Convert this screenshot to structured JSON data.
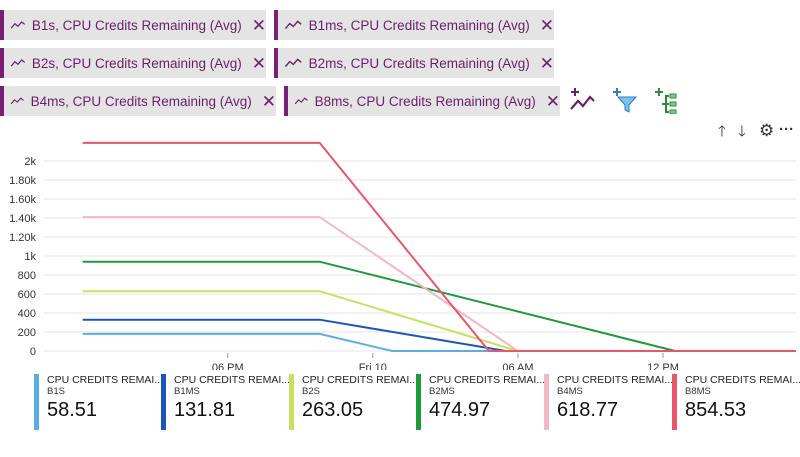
{
  "pills": [
    {
      "label": "B1s, CPU Credits Remaining (Avg)",
      "close": "✕"
    },
    {
      "label": "B1ms, CPU Credits Remaining (Avg)",
      "close": "✕"
    },
    {
      "label": "B2s, CPU Credits Remaining (Avg)",
      "close": "✕"
    },
    {
      "label": "B2ms, CPU Credits Remaining (Avg)",
      "close": "✕"
    },
    {
      "label": "B4ms, CPU Credits Remaining (Avg)",
      "close": "✕"
    },
    {
      "label": "B8ms, CPU Credits Remaining (Avg)",
      "close": "✕"
    }
  ],
  "toolbar": {
    "icons": [
      "add-metric-icon",
      "add-filter-icon",
      "apply-splitting-icon"
    ],
    "chart_actions": {
      "up": "🡑",
      "down": "🡓",
      "settings": "⚙",
      "more": "···"
    }
  },
  "colors": {
    "pill_accent": "#7a1e78",
    "B1s": "#5aaee0",
    "B1ms": "#1a56b8",
    "B2s": "#c8e060",
    "B2ms": "#1c9a3c",
    "B4ms": "#f4b8c2",
    "B8ms": "#e8566a"
  },
  "chart_data": {
    "type": "line",
    "x_ticks": [
      "06 PM",
      "Fri 10",
      "06 AM",
      "12 PM"
    ],
    "y_ticks": [
      "2k",
      "1.80k",
      "1.60k",
      "1.40k",
      "1.20k",
      "1k",
      "800",
      "600",
      "400",
      "200",
      "0"
    ],
    "ylim": [
      0,
      2200
    ],
    "x_unit": "hours since 12 PM Thursday",
    "xlim": [
      -1.6,
      29.5
    ],
    "grid": "horizontal",
    "series": [
      {
        "name": "B1s",
        "legend_label": "CPU CREDITS REMAI...",
        "sub": "B1S",
        "value": "58.51",
        "points": [
          [
            0,
            180
          ],
          [
            9.8,
            180
          ],
          [
            12.8,
            0
          ],
          [
            29.5,
            0
          ]
        ]
      },
      {
        "name": "B1ms",
        "legend_label": "CPU CREDITS REMAI...",
        "sub": "B1MS",
        "value": "131.81",
        "points": [
          [
            0,
            330
          ],
          [
            9.8,
            330
          ],
          [
            17.5,
            0
          ],
          [
            29.5,
            0
          ]
        ]
      },
      {
        "name": "B2s",
        "legend_label": "CPU CREDITS REMAI...",
        "sub": "B2S",
        "value": "263.05",
        "points": [
          [
            0,
            630
          ],
          [
            9.8,
            630
          ],
          [
            18.0,
            0
          ],
          [
            29.5,
            0
          ]
        ]
      },
      {
        "name": "B2ms",
        "legend_label": "CPU CREDITS REMAI...",
        "sub": "B2MS",
        "value": "474.97",
        "points": [
          [
            0,
            940
          ],
          [
            9.8,
            940
          ],
          [
            24.5,
            0
          ],
          [
            29.5,
            0
          ]
        ]
      },
      {
        "name": "B4ms",
        "legend_label": "CPU CREDITS REMAI...",
        "sub": "B4MS",
        "value": "618.77",
        "points": [
          [
            0,
            1410
          ],
          [
            9.8,
            1410
          ],
          [
            18.0,
            0
          ],
          [
            29.5,
            0
          ]
        ]
      },
      {
        "name": "B8ms",
        "legend_label": "CPU CREDITS REMAI...",
        "sub": "B8MS",
        "value": "854.53",
        "points": [
          [
            0,
            2190
          ],
          [
            9.8,
            2190
          ],
          [
            16.8,
            0
          ],
          [
            29.5,
            0
          ]
        ]
      }
    ]
  }
}
